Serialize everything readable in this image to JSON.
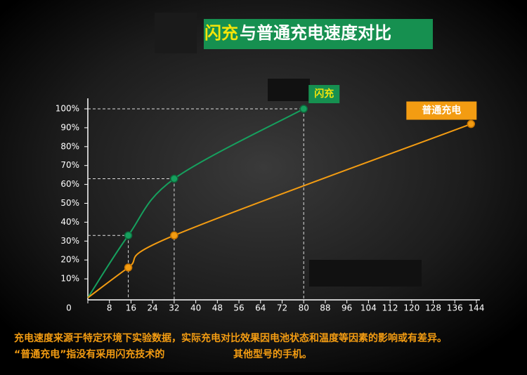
{
  "chart_data": {
    "type": "line",
    "title": [
      "闪充",
      "与普通充电速度对比"
    ],
    "series": [
      {
        "name": "闪充",
        "color": "#16a05e",
        "label_bg": "#169050",
        "x": [
          0,
          15,
          32,
          80
        ],
        "values": [
          0,
          33,
          63,
          100
        ]
      },
      {
        "name": "普通充电",
        "color": "#f39c12",
        "label_bg": "#f39c12",
        "x": [
          0,
          15,
          32,
          142
        ],
        "values": [
          0,
          16,
          33,
          92
        ]
      }
    ],
    "xlim": [
      0,
      144
    ],
    "xticks": [
      0,
      8,
      16,
      24,
      32,
      40,
      48,
      56,
      64,
      72,
      80,
      88,
      96,
      104,
      112,
      120,
      128,
      136,
      144
    ],
    "ylim": [
      0,
      100
    ],
    "yticks": [
      {
        "value": 10,
        "label": "10%"
      },
      {
        "value": 20,
        "label": "20%"
      },
      {
        "value": 30,
        "label": "30%"
      },
      {
        "value": 40,
        "label": "40%"
      },
      {
        "value": 50,
        "label": "50%"
      },
      {
        "value": 60,
        "label": "60%"
      },
      {
        "value": 70,
        "label": "70%"
      },
      {
        "value": 80,
        "label": "80%"
      },
      {
        "value": 90,
        "label": "90%"
      },
      {
        "value": 100,
        "label": "100%"
      }
    ],
    "notes": [
      "充电速度来源于特定环境下实验数据，实际充电对比效果因电池状态和温度等因素的影响或有差异。",
      "“普通充电”指没有采用闪充技术的",
      "其他型号的手机。"
    ]
  }
}
